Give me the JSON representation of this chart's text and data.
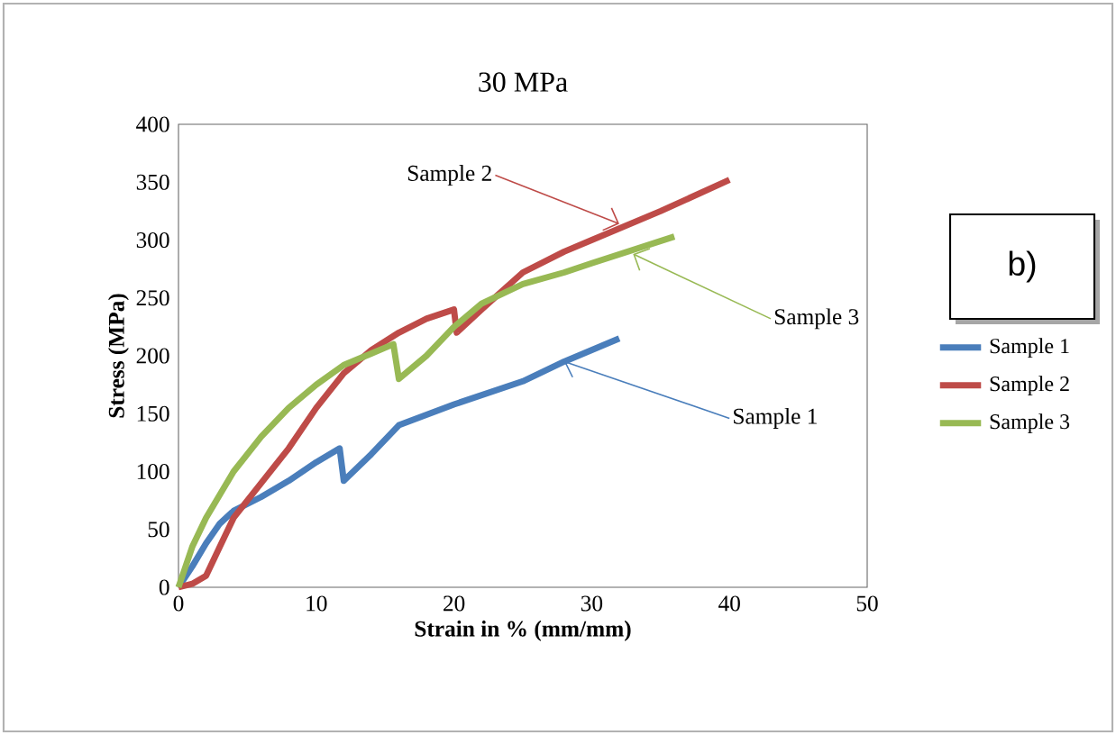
{
  "chart_data": {
    "type": "line",
    "title": "30 MPa",
    "xlabel": "Strain in % (mm/mm)",
    "ylabel": "Stress (MPa)",
    "xlim": [
      0,
      50
    ],
    "xticks": [
      0,
      10,
      20,
      30,
      40,
      50
    ],
    "ylim": [
      0,
      400
    ],
    "yticks": [
      0,
      50,
      100,
      150,
      200,
      250,
      300,
      350,
      400
    ],
    "legend": "right",
    "grid": false,
    "marker": "none",
    "line_style": "solid",
    "series": [
      {
        "name": "Sample 1",
        "color": "#4a7ebb",
        "x": [
          0,
          1,
          2,
          3,
          4,
          6,
          8,
          10,
          11.7,
          12,
          14,
          16,
          20,
          25,
          28,
          32
        ],
        "values": [
          0,
          18,
          38,
          55,
          66,
          78,
          92,
          108,
          120,
          92,
          115,
          140,
          158,
          178,
          195,
          215
        ]
      },
      {
        "name": "Sample 2",
        "color": "#be4b48",
        "x": [
          0,
          1,
          2,
          3,
          4,
          6,
          8,
          10,
          12,
          14,
          16,
          18,
          20,
          20.2,
          22,
          25,
          28,
          30,
          35,
          40
        ],
        "values": [
          0,
          3,
          10,
          35,
          60,
          90,
          120,
          155,
          185,
          205,
          220,
          232,
          240,
          220,
          240,
          272,
          290,
          300,
          325,
          352
        ]
      },
      {
        "name": "Sample 3",
        "color": "#98b954",
        "x": [
          0,
          1,
          2,
          4,
          6,
          8,
          10,
          12,
          14,
          15.6,
          16,
          18,
          20,
          22,
          25,
          28,
          30,
          36
        ],
        "values": [
          0,
          35,
          60,
          100,
          130,
          155,
          175,
          192,
          202,
          210,
          180,
          200,
          225,
          245,
          262,
          272,
          280,
          303
        ]
      }
    ],
    "annotations": [
      {
        "text": "Sample 2",
        "x": 32,
        "y": 314
      },
      {
        "text": "Sample 3",
        "x": 33,
        "y": 288
      },
      {
        "text": "Sample 1",
        "x": 28,
        "y": 195
      },
      "b)"
    ]
  }
}
